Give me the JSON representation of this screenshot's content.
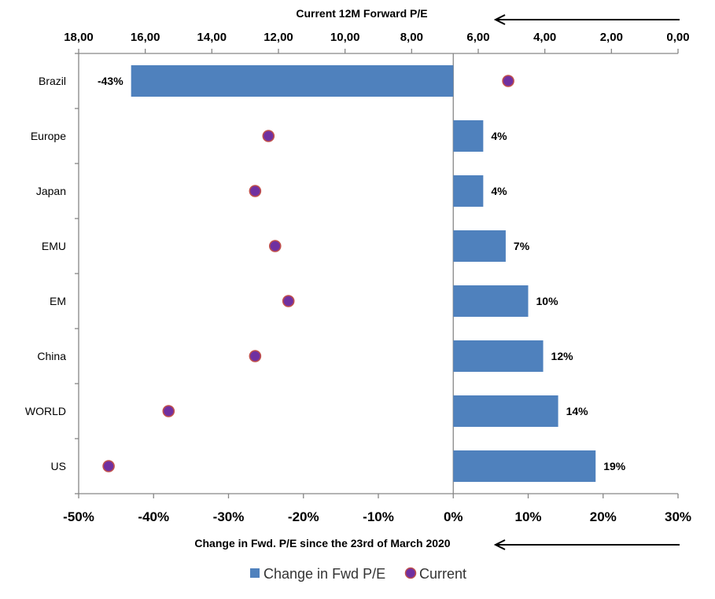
{
  "chart_data": {
    "type": "bar",
    "orientation": "horizontal",
    "categories": [
      "Brazil",
      "Europe",
      "Japan",
      "EMU",
      "EM",
      "China",
      "WORLD",
      "US"
    ],
    "series": [
      {
        "name": "Change in Fwd P/E",
        "type": "bar",
        "axis": "bottom",
        "values": [
          -43,
          4,
          4,
          7,
          10,
          12,
          14,
          19
        ],
        "labels": [
          "-43%",
          "4%",
          "4%",
          "7%",
          "10%",
          "12%",
          "14%",
          "19%"
        ],
        "color": "#4f81bd"
      },
      {
        "name": "Current",
        "type": "scatter",
        "axis": "top",
        "values": [
          5.1,
          12.3,
          12.7,
          12.1,
          11.7,
          12.7,
          15.3,
          17.1
        ],
        "color": "#7030a0",
        "edge_color": "#c0504d"
      }
    ],
    "x_bottom": {
      "title": "Change in Fwd. P/E since the 23rd of March 2020",
      "range": [
        -50,
        30
      ],
      "ticks": [
        -50,
        -40,
        -30,
        -20,
        -10,
        0,
        10,
        20,
        30
      ],
      "tick_labels": [
        "-50%",
        "-40%",
        "-30%",
        "-20%",
        "-10%",
        "0%",
        "10%",
        "20%",
        "30%"
      ]
    },
    "x_top": {
      "title": "Current 12M Forward P/E",
      "range": [
        18,
        0
      ],
      "reversed": true,
      "ticks": [
        18,
        16,
        14,
        12,
        10,
        8,
        6,
        4,
        2,
        0
      ],
      "tick_labels": [
        "18,00",
        "16,00",
        "14,00",
        "12,00",
        "10,00",
        "8,00",
        "6,00",
        "4,00",
        "2,00",
        "0,00"
      ]
    },
    "grid": false,
    "legend": "bottom"
  }
}
